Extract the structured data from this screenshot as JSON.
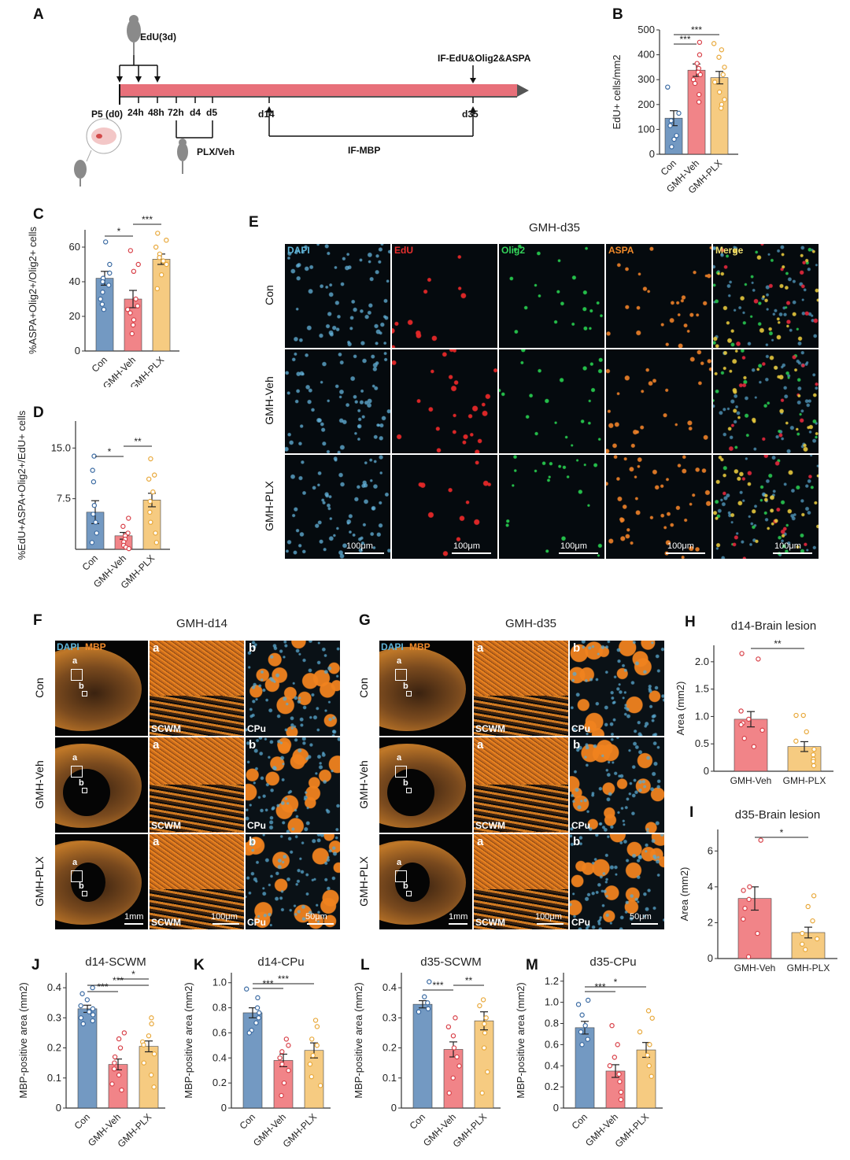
{
  "colors": {
    "con": "#5b87b7",
    "veh": "#ee6e73",
    "plx": "#f5c26b",
    "timeline": "#e8707a"
  },
  "panel_labels": {
    "A": "A",
    "B": "B",
    "C": "C",
    "D": "D",
    "E": "E",
    "F": "F",
    "G": "G",
    "H": "H",
    "I": "I",
    "J": "J",
    "K": "K",
    "L": "L",
    "M": "M"
  },
  "timeline": {
    "edu": "EdU(3d)",
    "if_edu": "IF-EdU&Olig2&ASPA",
    "ticks": [
      "P5 (d0)",
      "24h",
      "48h",
      "72h",
      "d4",
      "d5",
      "d14",
      "d35"
    ],
    "plx": "PLX/Veh",
    "ifmbp": "IF-MBP"
  },
  "panelE": {
    "title": "GMH-d35",
    "channels": [
      "DAPI",
      "EdU",
      "Olig2",
      "ASPA",
      "Merge"
    ],
    "rows": [
      "Con",
      "GMH-Veh",
      "GMH-PLX"
    ],
    "scale": "100μm"
  },
  "panelF": {
    "title": "GMH-d14",
    "legend_dapi": "DAPI",
    "legend_mbp": "MBP",
    "rows": [
      "Con",
      "GMH-Veh",
      "GMH-PLX"
    ],
    "insets": [
      "a",
      "b"
    ],
    "regions": [
      "SCWM",
      "CPu"
    ],
    "scales": [
      "1mm",
      "100μm",
      "50μm"
    ]
  },
  "panelG": {
    "title": "GMH-d35",
    "legend_dapi": "DAPI",
    "legend_mbp": "MBP",
    "rows": [
      "Con",
      "GMH-Veh",
      "GMH-PLX"
    ],
    "insets": [
      "a",
      "b"
    ],
    "regions": [
      "SCWM",
      "CPu"
    ],
    "scales": [
      "1mm",
      "100μm",
      "50μm"
    ]
  },
  "chart_data": [
    {
      "id": "B",
      "type": "bar",
      "title": "",
      "ylabel": "EdU+ cells/mm2",
      "categories": [
        "Con",
        "GMH-Veh",
        "GMH-PLX"
      ],
      "values": [
        145,
        338,
        308
      ],
      "errors": [
        30,
        25,
        25
      ],
      "ylim": [
        0,
        500
      ],
      "yticks": [
        0,
        100,
        200,
        300,
        400,
        500
      ],
      "sig": [
        {
          "a": 0,
          "b": 1,
          "label": "***"
        },
        {
          "a": 0,
          "b": 2,
          "label": "***"
        }
      ],
      "points": [
        [
          270,
          165,
          135,
          115,
          75,
          60,
          30
        ],
        [
          450,
          400,
          365,
          345,
          330,
          320,
          300,
          285,
          240,
          210
        ],
        [
          445,
          420,
          390,
          350,
          320,
          290,
          250,
          220,
          200,
          185
        ]
      ]
    },
    {
      "id": "C",
      "type": "bar",
      "title": "",
      "ylabel": "%ASPA+Olig2+/Olig2+ cells",
      "categories": [
        "Con",
        "GMH-Veh",
        "GMH-PLX"
      ],
      "values": [
        42,
        30,
        53
      ],
      "errors": [
        4,
        5,
        3
      ],
      "ylim": [
        0,
        70
      ],
      "yticks": [
        0,
        20,
        40,
        60
      ],
      "sig": [
        {
          "a": 0,
          "b": 1,
          "label": "*"
        },
        {
          "a": 1,
          "b": 2,
          "label": "***"
        }
      ],
      "points": [
        [
          63,
          50,
          45,
          42,
          40,
          38,
          34,
          30,
          27,
          24
        ],
        [
          58,
          50,
          46,
          30,
          26,
          24,
          22,
          18,
          15,
          10
        ],
        [
          68,
          64,
          60,
          56,
          54,
          52,
          50,
          44,
          36
        ]
      ]
    },
    {
      "id": "D",
      "type": "bar",
      "title": "",
      "ylabel": "%EdU+ASPA+Olig2+/EdU+ cells",
      "categories": [
        "Con",
        "GMH-Veh",
        "GMH-PLX"
      ],
      "values": [
        5.5,
        2.0,
        7.3
      ],
      "errors": [
        1.7,
        0.5,
        1.0
      ],
      "ylim": [
        0,
        19
      ],
      "yticks": [
        7.5,
        15.0
      ],
      "sig": [
        {
          "a": 0,
          "b": 1,
          "label": "*"
        },
        {
          "a": 1,
          "b": 2,
          "label": "**"
        }
      ],
      "points": [
        [
          13.8,
          11.7,
          10.0,
          6.5,
          5.2,
          4.0,
          2.4,
          1.0
        ],
        [
          4.6,
          3.4,
          2.4,
          2.0,
          1.5,
          1.1,
          0.6,
          0.3,
          0.1
        ],
        [
          13.4,
          11.0,
          10.4,
          8.5,
          7.1,
          5.5,
          4.0,
          2.4,
          1.0
        ]
      ]
    },
    {
      "id": "H",
      "type": "bar",
      "title": "d14-Brain lesion",
      "ylabel": "Area (mm2)",
      "categories": [
        "GMH-Veh",
        "GMH-PLX"
      ],
      "values": [
        0.95,
        0.45
      ],
      "errors": [
        0.14,
        0.09
      ],
      "ylim": [
        0,
        2.3
      ],
      "yticks": [
        0,
        0.5,
        1.0,
        1.5,
        2.0
      ],
      "sig": [
        {
          "a": 0,
          "b": 1,
          "label": "**"
        }
      ],
      "points": [
        [
          2.15,
          2.05,
          1.1,
          0.95,
          0.88,
          0.85,
          0.75,
          0.6,
          0.45
        ],
        [
          1.02,
          1.02,
          0.72,
          0.55,
          0.4,
          0.3,
          0.22,
          0.18,
          0.1
        ]
      ]
    },
    {
      "id": "I",
      "type": "bar",
      "title": "d35-Brain lesion",
      "ylabel": "Area (mm2)",
      "categories": [
        "GMH-Veh",
        "GMH-PLX"
      ],
      "values": [
        3.35,
        1.45
      ],
      "errors": [
        0.65,
        0.3
      ],
      "ylim": [
        0,
        7.2
      ],
      "yticks": [
        0,
        2,
        4,
        6
      ],
      "sig": [
        {
          "a": 0,
          "b": 1,
          "label": "*"
        }
      ],
      "points": [
        [
          6.6,
          4.0,
          3.8,
          3.3,
          2.8,
          2.2,
          1.4,
          0.1
        ],
        [
          3.5,
          2.9,
          2.1,
          1.4,
          1.1,
          0.8,
          0.5
        ]
      ]
    },
    {
      "id": "J",
      "type": "bar",
      "title": "d14-SCWM",
      "ylabel": "MBP-positive area (mm2)",
      "categories": [
        "Con",
        "GMH-Veh",
        "GMH-PLX"
      ],
      "values": [
        0.33,
        0.145,
        0.205
      ],
      "errors": [
        0.012,
        0.018,
        0.018
      ],
      "ylim": [
        0,
        0.45
      ],
      "yticks": [
        0,
        0.1,
        0.2,
        0.3,
        0.4
      ],
      "sig": [
        {
          "a": 0,
          "b": 1,
          "label": "***"
        },
        {
          "a": 0,
          "b": 2,
          "label": "***"
        },
        {
          "a": 1,
          "b": 2,
          "label": "*"
        }
      ],
      "points": [
        [
          0.4,
          0.38,
          0.36,
          0.34,
          0.33,
          0.32,
          0.31,
          0.3,
          0.29,
          0.28
        ],
        [
          0.25,
          0.23,
          0.2,
          0.17,
          0.15,
          0.13,
          0.11,
          0.08,
          0.06
        ],
        [
          0.3,
          0.28,
          0.24,
          0.22,
          0.21,
          0.18,
          0.15,
          0.11,
          0.07
        ]
      ]
    },
    {
      "id": "K",
      "type": "bar",
      "title": "d14-CPu",
      "ylabel": "MBP-positive area (mm2)",
      "categories": [
        "Con",
        "GMH-Veh",
        "GMH-PLX"
      ],
      "values": [
        0.76,
        0.38,
        0.46
      ],
      "errors": [
        0.04,
        0.05,
        0.06
      ],
      "ylim": [
        0,
        1.08
      ],
      "yticks": [
        0,
        0.2,
        0.4,
        0.6,
        0.8,
        1.0
      ],
      "sig": [
        {
          "a": 0,
          "b": 1,
          "label": "***"
        },
        {
          "a": 0,
          "b": 2,
          "label": "***"
        }
      ],
      "points": [
        [
          0.95,
          0.88,
          0.8,
          0.76,
          0.72,
          0.68,
          0.62,
          0.6
        ],
        [
          0.55,
          0.5,
          0.45,
          0.4,
          0.35,
          0.3,
          0.2,
          0.1
        ],
        [
          0.7,
          0.65,
          0.55,
          0.5,
          0.42,
          0.35,
          0.25,
          0.18
        ]
      ]
    },
    {
      "id": "L",
      "type": "bar",
      "title": "d35-SCWM",
      "ylabel": "MBP-positive area (mm2)",
      "categories": [
        "Con",
        "GMH-Veh",
        "GMH-PLX"
      ],
      "values": [
        0.345,
        0.195,
        0.29
      ],
      "errors": [
        0.012,
        0.025,
        0.03
      ],
      "ylim": [
        0,
        0.45
      ],
      "yticks": [
        0,
        0.1,
        0.2,
        0.3,
        0.4
      ],
      "sig": [
        {
          "a": 0,
          "b": 1,
          "label": "***"
        },
        {
          "a": 1,
          "b": 2,
          "label": "**"
        }
      ],
      "points": [
        [
          0.42,
          0.37,
          0.35,
          0.33,
          0.32
        ],
        [
          0.3,
          0.27,
          0.24,
          0.2,
          0.17,
          0.14,
          0.1,
          0.05
        ],
        [
          0.36,
          0.34,
          0.3,
          0.28,
          0.25,
          0.2,
          0.12,
          0.05
        ]
      ]
    },
    {
      "id": "M",
      "type": "bar",
      "title": "d35-CPu",
      "ylabel": "MBP-positive area (mm2)",
      "categories": [
        "Con",
        "GMH-Veh",
        "GMH-PLX"
      ],
      "values": [
        0.76,
        0.35,
        0.55
      ],
      "errors": [
        0.06,
        0.06,
        0.07
      ],
      "ylim": [
        0,
        1.28
      ],
      "yticks": [
        0,
        0.2,
        0.4,
        0.6,
        0.8,
        1.0,
        1.2
      ],
      "sig": [
        {
          "a": 0,
          "b": 1,
          "label": "***"
        },
        {
          "a": 0,
          "b": 2,
          "label": "*"
        }
      ],
      "points": [
        [
          1.02,
          0.98,
          0.88,
          0.78,
          0.72,
          0.65,
          0.6
        ],
        [
          0.78,
          0.6,
          0.48,
          0.4,
          0.32,
          0.25,
          0.15,
          0.08
        ],
        [
          0.92,
          0.85,
          0.72,
          0.6,
          0.5,
          0.4,
          0.3
        ]
      ]
    }
  ]
}
